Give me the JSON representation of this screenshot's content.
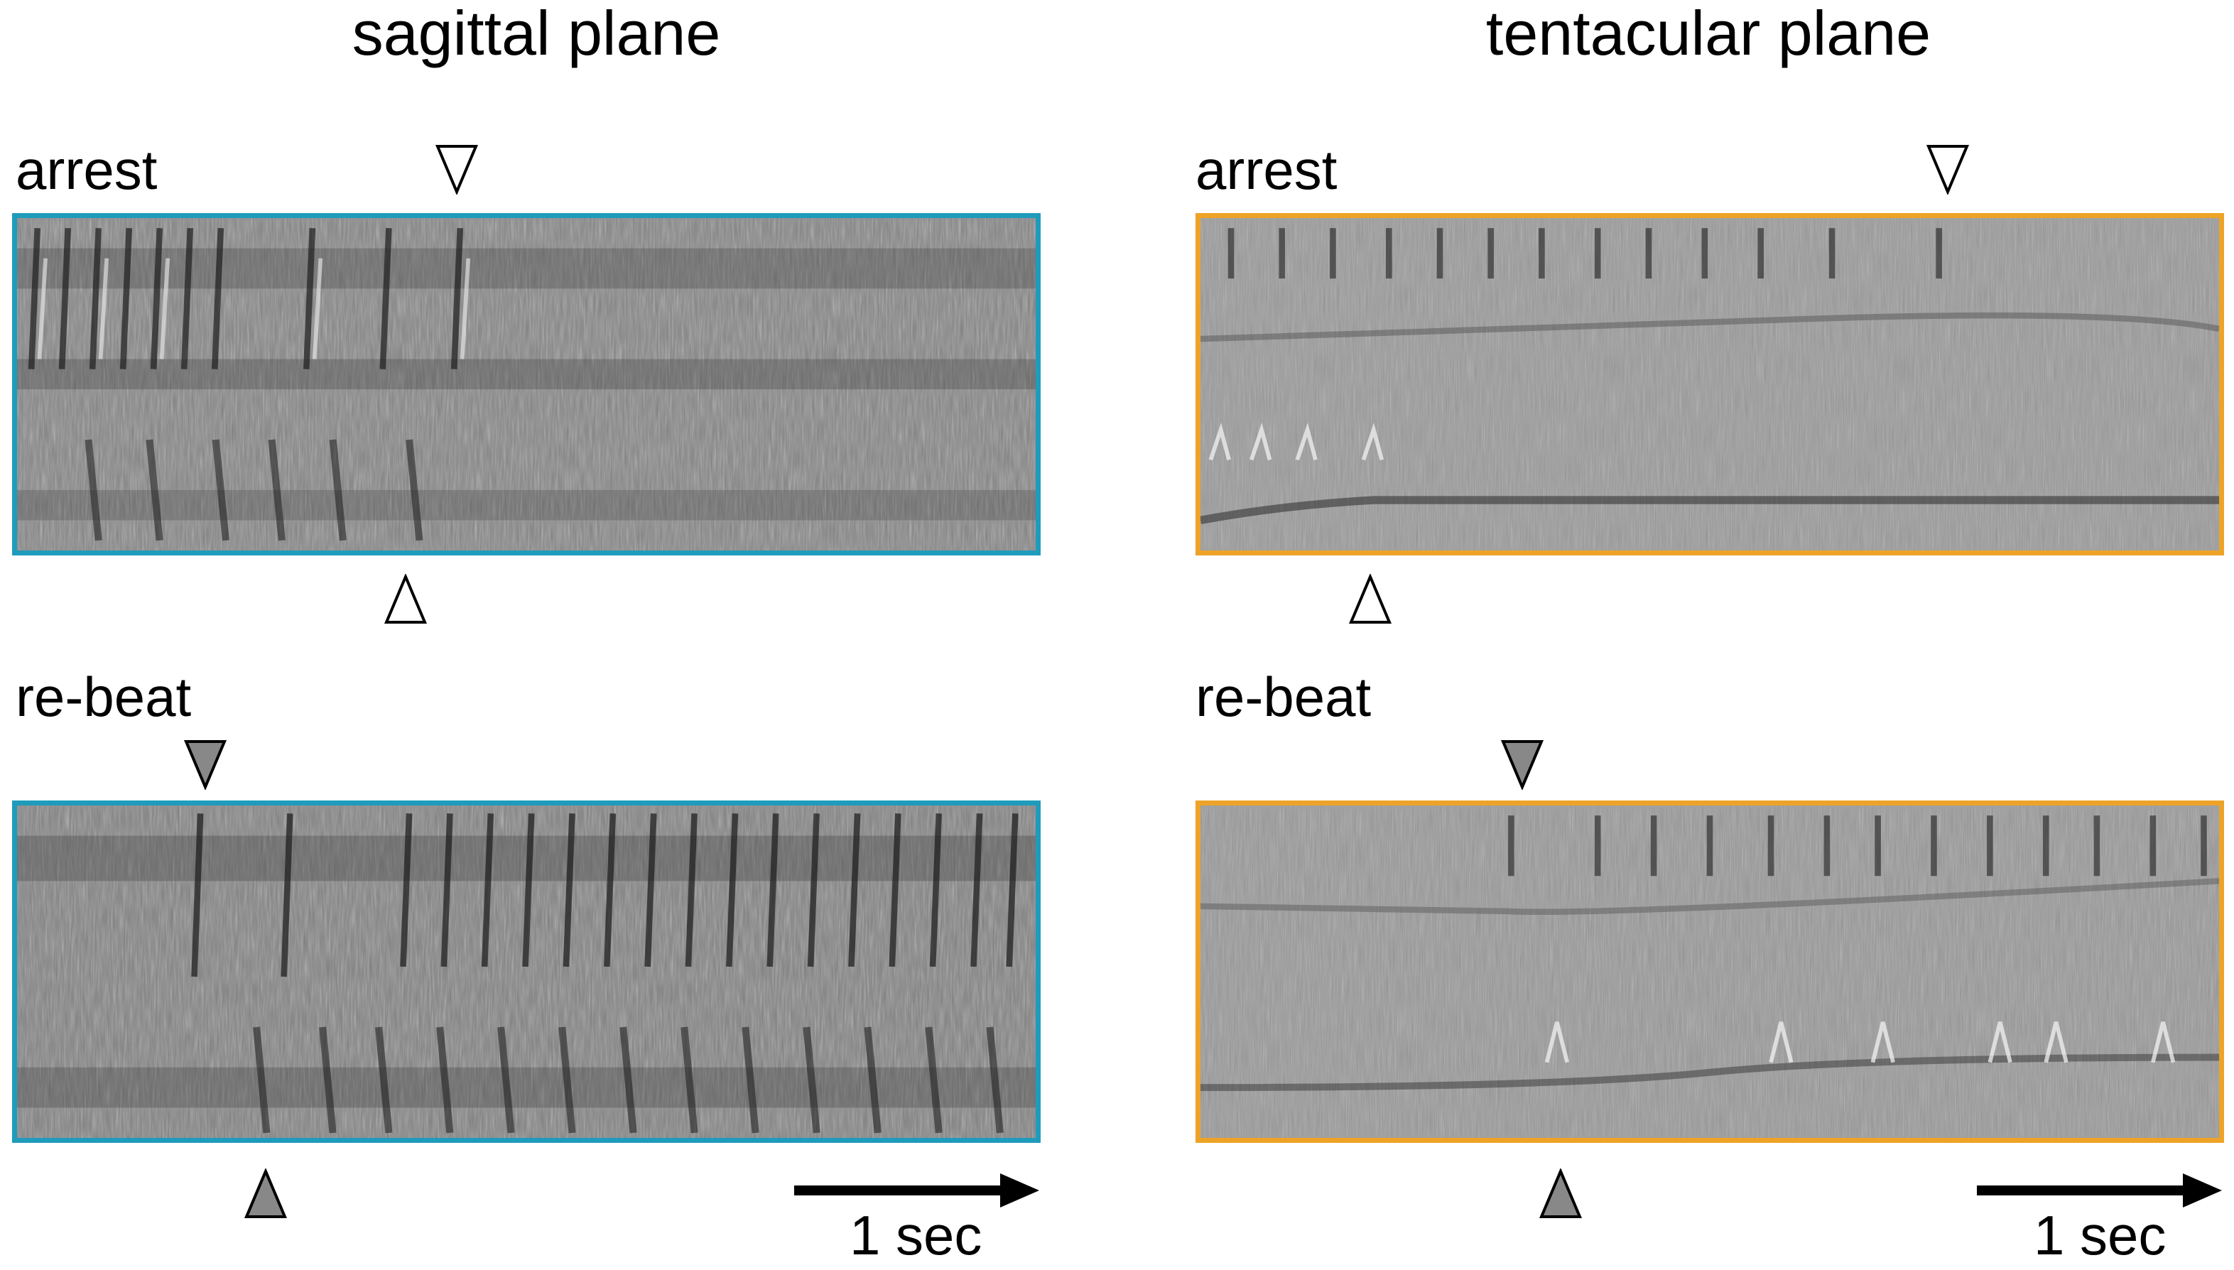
{
  "columns": {
    "left_title": "sagittal plane",
    "right_title": "tentacular plane"
  },
  "rows": {
    "top_label": "arrest",
    "bottom_label": "re-beat"
  },
  "scale": {
    "label": "1 sec"
  },
  "colors": {
    "sagittal_frame": "#1f9bbb",
    "tentacular_frame": "#eda327",
    "open_marker": "#ffffff",
    "filled_marker": "#888888"
  },
  "markers": {
    "arrest": "open-triangle",
    "re_beat": "filled-triangle"
  }
}
